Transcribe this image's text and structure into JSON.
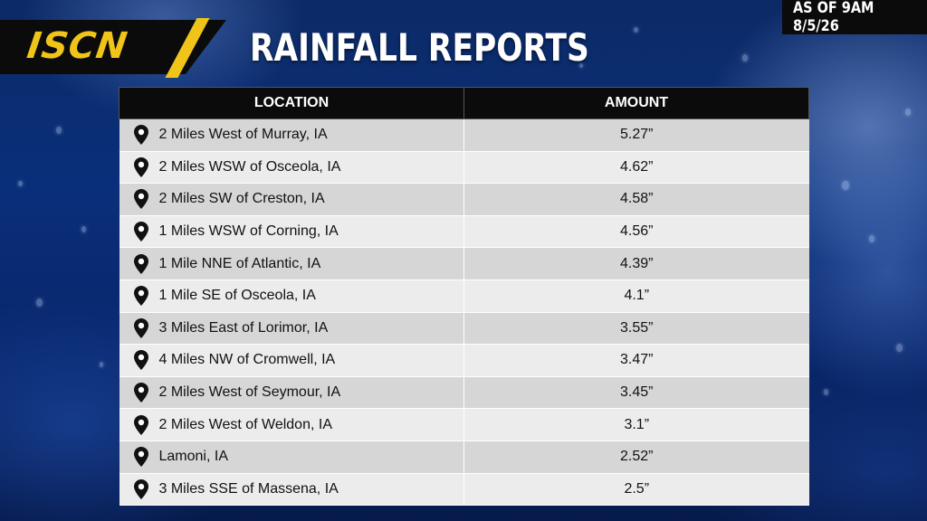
{
  "header": {
    "logo": "ISCN",
    "title": "RAINFALL REPORTS",
    "timestamp": "AS OF 9AM 8/5/26"
  },
  "table": {
    "columns": [
      "LOCATION",
      "AMOUNT"
    ],
    "location_icon": "map-pin-icon",
    "rows": [
      {
        "location": "2 Miles West of Murray, IA",
        "amount": "5.27”"
      },
      {
        "location": "2 Miles WSW of Osceola, IA",
        "amount": "4.62”"
      },
      {
        "location": "2 Miles SW of Creston, IA",
        "amount": "4.58”"
      },
      {
        "location": "1 Miles WSW of Corning, IA",
        "amount": "4.56”"
      },
      {
        "location": "1 Mile NNE of Atlantic, IA",
        "amount": "4.39”"
      },
      {
        "location": "1 Mile SE of Osceola, IA",
        "amount": "4.1”"
      },
      {
        "location": "3 Miles East of Lorimor, IA",
        "amount": "3.55”"
      },
      {
        "location": "4 Miles NW of Cromwell, IA",
        "amount": "3.47”"
      },
      {
        "location": "2 Miles West of Seymour, IA",
        "amount": "3.45”"
      },
      {
        "location": "2 Miles West of Weldon, IA",
        "amount": "3.1”"
      },
      {
        "location": "Lamoni, IA",
        "amount": "2.52”"
      },
      {
        "location": "3 Miles SSE of Massena, IA",
        "amount": "2.5”"
      }
    ]
  },
  "colors": {
    "accent": "#f0c419",
    "header_bg": "#0b0b0b",
    "background": "#0a2f7a"
  }
}
